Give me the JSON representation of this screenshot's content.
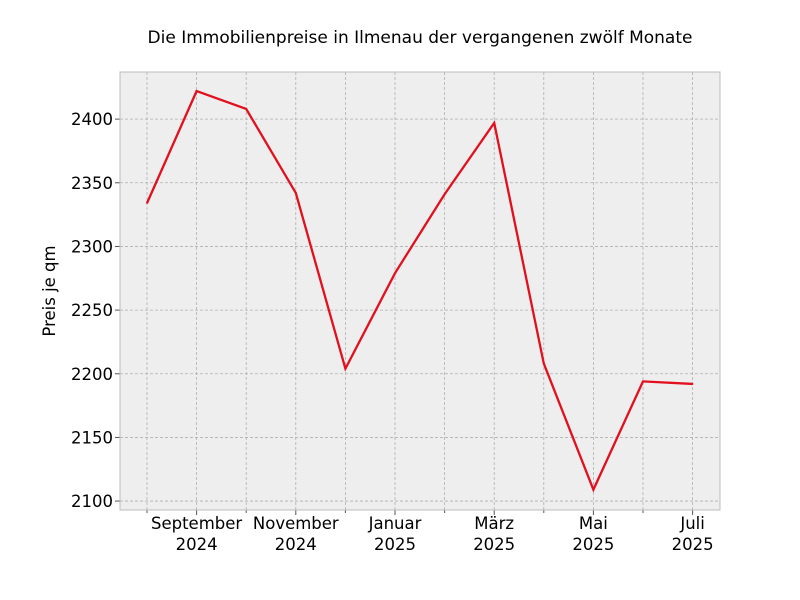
{
  "chart_data": {
    "type": "line",
    "title": "Die Immobilienpreise in Ilmenau der vergangenen zwölf Monate",
    "xlabel": "",
    "ylabel": "Preis je qm",
    "x": [
      "2024-08",
      "2024-09",
      "2024-10",
      "2024-11",
      "2024-12",
      "2025-01",
      "2025-02",
      "2025-03",
      "2025-04",
      "2025-05",
      "2025-06",
      "2025-07"
    ],
    "series": [
      {
        "values": [
          2334,
          2422,
          2408,
          2342,
          2204,
          2279,
          2341,
          2397,
          2208,
          2109,
          2194,
          2192
        ]
      }
    ],
    "ylim": [
      2093,
      2437
    ],
    "y_ticks": [
      2100,
      2150,
      2200,
      2250,
      2300,
      2350,
      2400
    ],
    "x_tick_labels": [
      {
        "x": "2024-09",
        "line1": "September",
        "line2": "2024"
      },
      {
        "x": "2024-11",
        "line1": "November",
        "line2": "2024"
      },
      {
        "x": "2025-01",
        "line1": "Januar",
        "line2": "2025"
      },
      {
        "x": "2025-03",
        "line1": "März",
        "line2": "2025"
      },
      {
        "x": "2025-05",
        "line1": "Mai",
        "line2": "2025"
      },
      {
        "x": "2025-07",
        "line1": "Juli",
        "line2": "2025"
      }
    ],
    "grid": true,
    "colors": {
      "line": "#e2101f",
      "plot_background": "#eeeeee",
      "frame": "#bcbcbc"
    }
  }
}
